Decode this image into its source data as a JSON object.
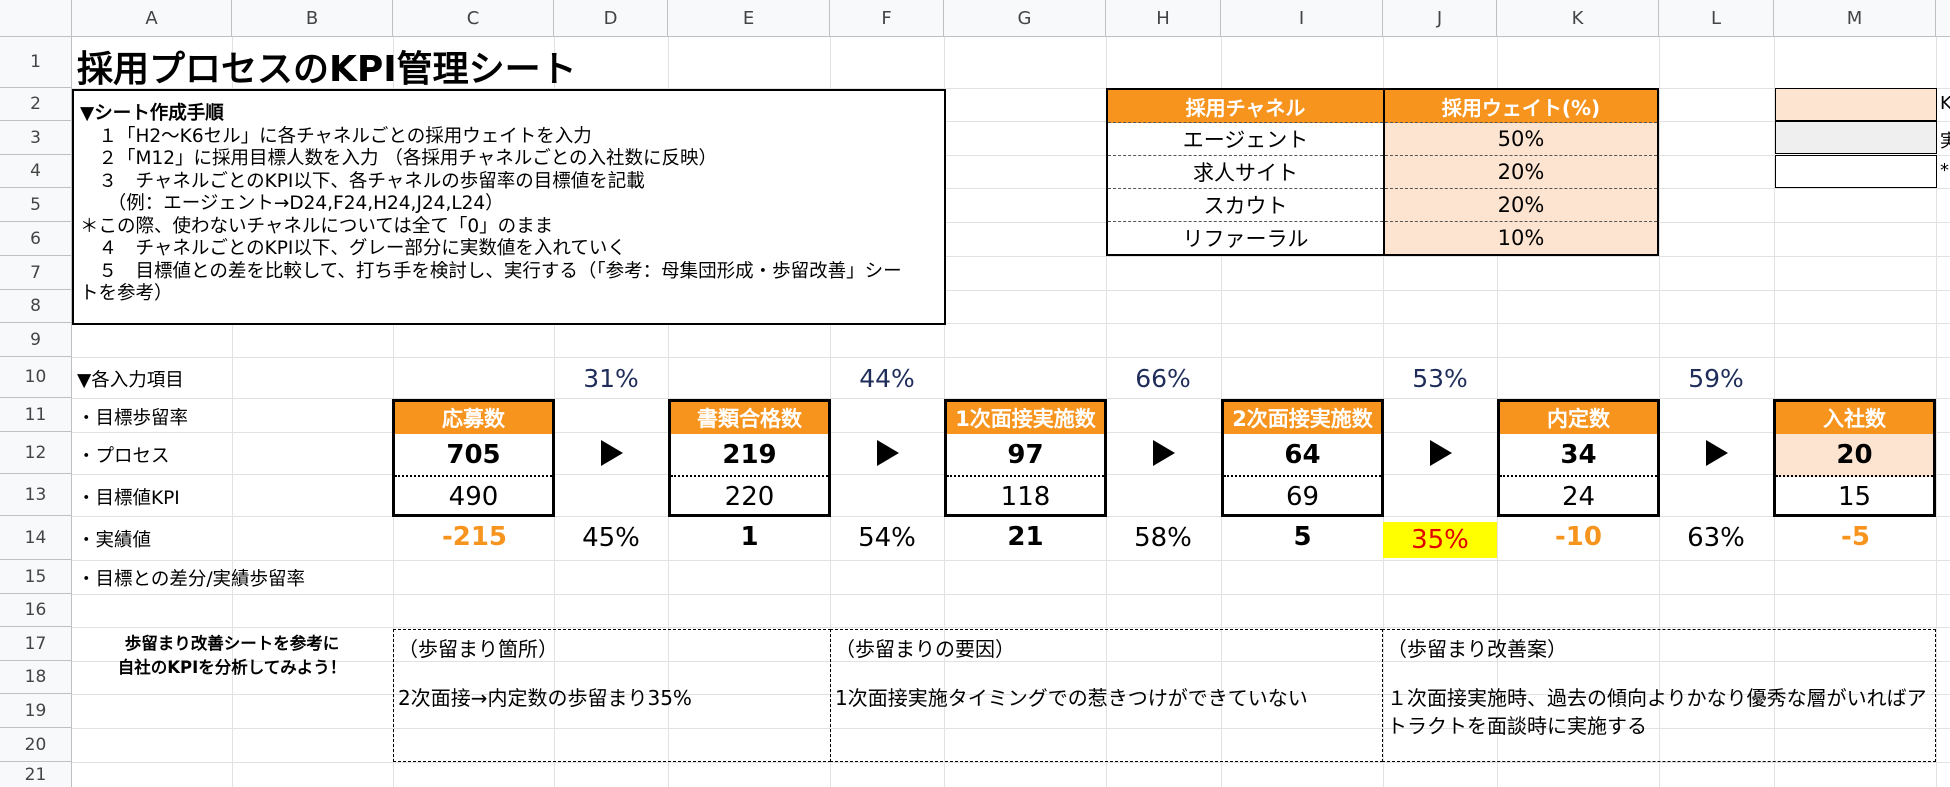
{
  "columns": [
    "A",
    "B",
    "C",
    "D",
    "E",
    "F",
    "G",
    "H",
    "I",
    "J",
    "K",
    "L",
    "M"
  ],
  "rows": [
    "1",
    "2",
    "3",
    "4",
    "5",
    "6",
    "7",
    "8",
    "9",
    "10",
    "11",
    "12",
    "13",
    "14",
    "15",
    "16",
    "17",
    "18",
    "19",
    "20",
    "21"
  ],
  "title": "採用プロセスのKPI管理シート",
  "instructions": [
    "▼シート作成手順",
    "　１「H2〜K6セル」に各チャネルごとの採用ウェイトを入力",
    "　２「M12」に採用目標人数を入力 （各採用チャネルごとの入社数に反映）",
    "　３　チャネルごとのKPI以下、各チャネルの歩留率の目標値を記載",
    "　　（例：エージェント→D24,F24,H24,J24,L24）",
    "＊この際、使わないチャネルについては全て「0」のまま",
    "　４　チャネルごとのKPI以下、グレー部分に実数値を入れていく",
    "　５　目標値との差を比較して、打ち手を検討し、実行する（「参考：母集団形成・歩留改善」シー",
    "トを参考）"
  ],
  "channel_table": {
    "headers": [
      "採用チャネル",
      "採用ウェイト(%)"
    ],
    "rows": [
      {
        "channel": "エージェント",
        "weight": "50%"
      },
      {
        "channel": "求人サイト",
        "weight": "20%"
      },
      {
        "channel": "スカウト",
        "weight": "20%"
      },
      {
        "channel": "リファーラル",
        "weight": "10%"
      }
    ]
  },
  "right_cut": [
    "K",
    "実",
    "*"
  ],
  "row_labels": [
    "▼各入力項目",
    "・目標歩留率",
    "・プロセス",
    "・目標値KPI",
    "・実績値",
    "・目標との差分/実績歩留率"
  ],
  "target_rates": [
    "31%",
    "44%",
    "66%",
    "53%",
    "59%"
  ],
  "stages": [
    {
      "name": "応募数",
      "process": "705",
      "kpi": "490",
      "diff": "-215"
    },
    {
      "name": "書類合格数",
      "process": "219",
      "kpi": "220",
      "diff": "1"
    },
    {
      "name": "1次面接実施数",
      "process": "97",
      "kpi": "118",
      "diff": "21"
    },
    {
      "name": "2次面接実施数",
      "process": "64",
      "kpi": "69",
      "diff": "5"
    },
    {
      "name": "内定数",
      "process": "34",
      "kpi": "24",
      "diff": "-10"
    },
    {
      "name": "入社数",
      "process": "20",
      "kpi": "15",
      "diff": "-5"
    }
  ],
  "actual_rates": [
    "45%",
    "54%",
    "58%",
    "35%",
    "63%"
  ],
  "colors": {
    "accent": "#f7941d",
    "light_orange": "#fde4d0",
    "highlight": "#ffff00",
    "alert_text": "#e00000",
    "rate_text": "#1f2d5a"
  },
  "advice": [
    "歩留まり改善シートを参考に",
    "自社のKPIを分析してみよう！"
  ],
  "analysis": [
    {
      "heading": "（歩留まり箇所）",
      "body": "2次面接→内定数の歩留まり35%"
    },
    {
      "heading": "（歩留まりの要因）",
      "body": "1次面接実施タイミングでの惹きつけができていない"
    },
    {
      "heading": "（歩留まり改善案）",
      "body": "１次面接実施時、過去の傾向よりかなり優秀な層がいればアトラクトを面談時に実施する"
    }
  ]
}
